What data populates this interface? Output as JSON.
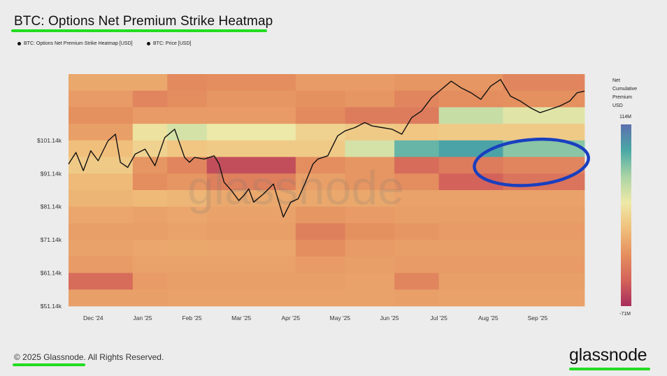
{
  "title": "BTC: Options Net Premium Strike Heatmap",
  "legend": [
    {
      "label": "BTC: Options Net Premium Strike Heatmap [USD]"
    },
    {
      "label": "BTC: Price [USD]"
    }
  ],
  "colorbar": {
    "title": [
      "Net",
      "Cumulative",
      "Premium",
      "USD"
    ],
    "max_label": "114M",
    "min_label": "-71M",
    "colors": [
      "#5b6fae",
      "#4aa8a6",
      "#aad4a5",
      "#eee9a8",
      "#f0c07c",
      "#e5905f",
      "#d4645a",
      "#a72d5c"
    ]
  },
  "footer": "© 2025 Glassnode. All Rights Reserved.",
  "brand": "glassnode",
  "watermark": "glassnode",
  "highlight_color": "#1a3fbf",
  "underline_color": "#22dd22",
  "chart_data": {
    "type": "heatmap",
    "title": "BTC: Options Net Premium Strike Heatmap",
    "ylim": [
      51140,
      121140
    ],
    "y_ticks": [
      "$101.14k",
      "$91.14k",
      "$81.14k",
      "$71.14k",
      "$61.14k",
      "$51.14k"
    ],
    "y_tick_values": [
      101140,
      91140,
      81140,
      71140,
      61140,
      51140
    ],
    "x_ticks": [
      "Dec '24",
      "Jan '25",
      "Feb '25",
      "Mar '25",
      "Apr '25",
      "May '25",
      "Jun '25",
      "Jul '25",
      "Aug '25",
      "Sep '25"
    ],
    "x_tick_values": [
      0.5,
      1.5,
      2.5,
      3.5,
      4.5,
      5.5,
      6.5,
      7.5,
      8.5,
      9.5
    ],
    "xlim": [
      0,
      10.45
    ],
    "value_range": [
      -71,
      114
    ],
    "value_unit": "M USD",
    "strike_rows": [
      {
        "strike_top": 121140,
        "strike_bottom": 116140
      },
      {
        "strike_top": 116140,
        "strike_bottom": 111140
      },
      {
        "strike_top": 111140,
        "strike_bottom": 106140
      },
      {
        "strike_top": 106140,
        "strike_bottom": 101140
      },
      {
        "strike_top": 101140,
        "strike_bottom": 96140
      },
      {
        "strike_top": 96140,
        "strike_bottom": 91140
      },
      {
        "strike_top": 91140,
        "strike_bottom": 86140
      },
      {
        "strike_top": 86140,
        "strike_bottom": 81140
      },
      {
        "strike_top": 81140,
        "strike_bottom": 76140
      },
      {
        "strike_top": 76140,
        "strike_bottom": 71140
      },
      {
        "strike_top": 71140,
        "strike_bottom": 66140
      },
      {
        "strike_top": 66140,
        "strike_bottom": 61140
      },
      {
        "strike_top": 61140,
        "strike_bottom": 56140
      },
      {
        "strike_top": 56140,
        "strike_bottom": 51140
      }
    ],
    "periods": [
      {
        "x0": 0.0,
        "x1": 1.3,
        "values": [
          -5,
          -12,
          -18,
          -10,
          8,
          15,
          5,
          2,
          -6,
          -10,
          -8,
          -12,
          -40,
          -10
        ]
      },
      {
        "x0": 1.3,
        "x1": 2.0,
        "values": [
          -5,
          -25,
          -12,
          30,
          20,
          -15,
          -20,
          5,
          -8,
          -10,
          -6,
          -8,
          -12,
          -10
        ]
      },
      {
        "x0": 2.0,
        "x1": 2.8,
        "values": [
          -22,
          -20,
          -12,
          45,
          12,
          -25,
          -15,
          3,
          -6,
          -8,
          -5,
          -8,
          -10,
          -8
        ]
      },
      {
        "x0": 2.8,
        "x1": 4.6,
        "values": [
          -20,
          -15,
          -12,
          35,
          15,
          -55,
          -28,
          -5,
          -8,
          -10,
          -6,
          -8,
          -10,
          -8
        ]
      },
      {
        "x0": 4.6,
        "x1": 5.6,
        "values": [
          -12,
          -18,
          -22,
          20,
          15,
          -20,
          -10,
          -5,
          -15,
          -28,
          -20,
          -12,
          -10,
          -8
        ]
      },
      {
        "x0": 5.6,
        "x1": 6.6,
        "values": [
          -12,
          -15,
          -30,
          15,
          45,
          -15,
          -15,
          -5,
          -12,
          -18,
          -12,
          -10,
          -8,
          -8
        ]
      },
      {
        "x0": 6.6,
        "x1": 7.5,
        "values": [
          -15,
          -25,
          -30,
          12,
          80,
          -40,
          -20,
          -8,
          -10,
          -15,
          -10,
          -12,
          -25,
          -10
        ]
      },
      {
        "x0": 7.5,
        "x1": 8.8,
        "values": [
          -15,
          -20,
          50,
          15,
          90,
          -30,
          -45,
          -8,
          -10,
          -12,
          -10,
          -12,
          -10,
          -8
        ]
      },
      {
        "x0": 8.8,
        "x1": 10.45,
        "values": [
          -25,
          -18,
          40,
          15,
          70,
          -25,
          -35,
          -8,
          -10,
          -12,
          -10,
          -12,
          -10,
          -8
        ]
      }
    ],
    "price_series": {
      "name": "BTC: Price [USD]",
      "x": [
        0,
        0.15,
        0.3,
        0.45,
        0.6,
        0.8,
        0.95,
        1.05,
        1.2,
        1.35,
        1.55,
        1.75,
        1.95,
        2.15,
        2.35,
        2.45,
        2.55,
        2.75,
        2.95,
        3.05,
        3.15,
        3.3,
        3.45,
        3.55,
        3.65,
        3.75,
        3.95,
        4.15,
        4.35,
        4.5,
        4.65,
        4.8,
        4.95,
        5.05,
        5.25,
        5.45,
        5.6,
        5.8,
        6.0,
        6.15,
        6.35,
        6.55,
        6.75,
        6.95,
        7.15,
        7.35,
        7.55,
        7.75,
        7.95,
        8.15,
        8.35,
        8.55,
        8.75,
        8.95,
        9.15,
        9.35,
        9.55,
        9.75,
        9.95,
        10.15,
        10.3,
        10.45
      ],
      "y": [
        94000,
        97500,
        92000,
        98000,
        95000,
        101000,
        103000,
        94500,
        93000,
        97000,
        98500,
        93500,
        102000,
        104500,
        96000,
        94500,
        96000,
        95500,
        96500,
        94000,
        88500,
        86000,
        83000,
        84500,
        86500,
        82500,
        85000,
        88000,
        78000,
        82500,
        83500,
        88500,
        94000,
        95500,
        96500,
        102500,
        104000,
        105000,
        106500,
        105500,
        105000,
        104500,
        103000,
        108000,
        110000,
        114000,
        116500,
        119000,
        117000,
        115500,
        113500,
        117500,
        119500,
        114500,
        113000,
        111000,
        109500,
        110500,
        111500,
        113000,
        115500,
        116000
      ]
    },
    "annotation": {
      "type": "ellipse",
      "x_range": [
        8.3,
        10.45
      ],
      "y_range": [
        88500,
        100500
      ]
    }
  }
}
